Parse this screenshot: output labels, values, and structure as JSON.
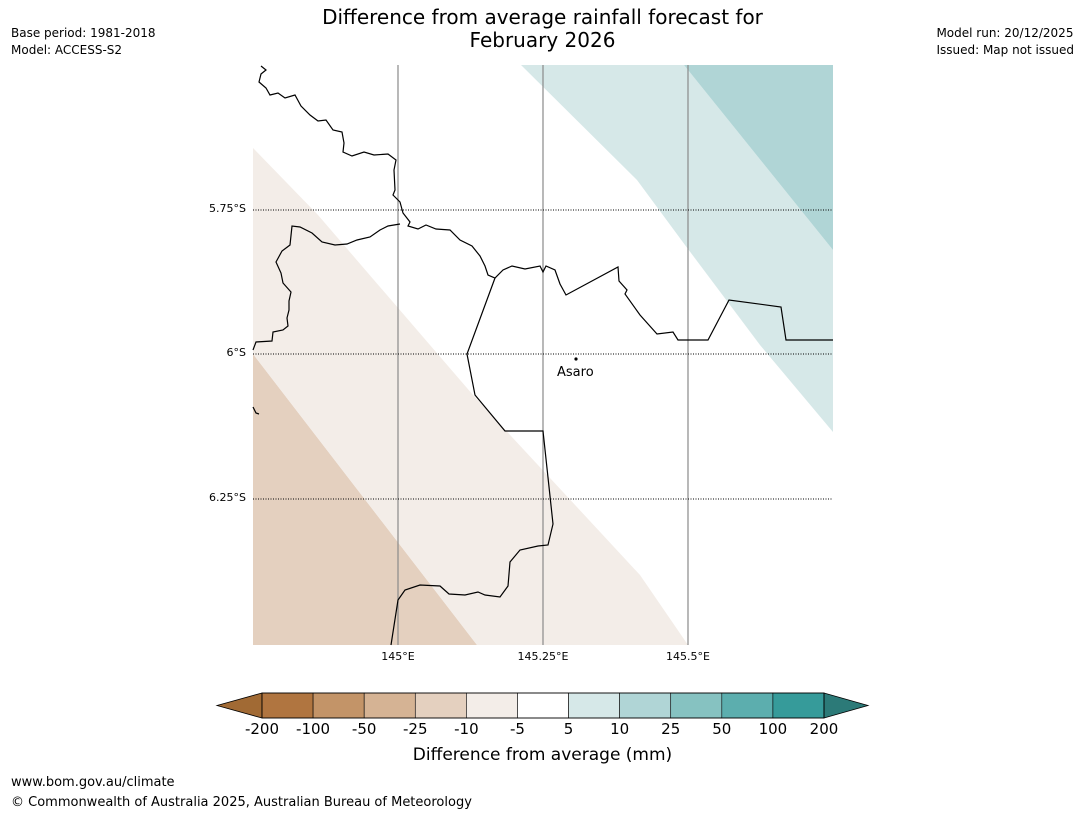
{
  "title_line1": "Difference from average rainfall forecast for",
  "title_line2": "February 2026",
  "meta_left": {
    "base_period": "Base period: 1981-2018",
    "model": "Model: ACCESS-S2"
  },
  "meta_right": {
    "model_run": "Model run: 20/12/2025",
    "issued": "Issued: Map not issued"
  },
  "map": {
    "lat_labels": [
      "5.75°S",
      "6°S",
      "6.25°S"
    ],
    "lon_labels": [
      "145°E",
      "145.25°E",
      "145.5°E"
    ],
    "place": "Asaro"
  },
  "colorbar": {
    "ticks": [
      "-200",
      "-100",
      "-50",
      "-25",
      "-10",
      "-5",
      "5",
      "10",
      "25",
      "50",
      "100",
      "200"
    ],
    "colors": [
      "#a16a34",
      "#b07540",
      "#c39468",
      "#d5b394",
      "#e4d0bf",
      "#f3ede8",
      "#ffffff",
      "#d6e8e8",
      "#b0d5d6",
      "#86c2c1",
      "#5caeae",
      "#369b9a",
      "#2c7a78"
    ],
    "label": "Difference from average (mm)"
  },
  "footer": {
    "url": "www.bom.gov.au/climate",
    "copyright": "© Commonwealth of Australia 2025, Australian Bureau of Meteorology"
  }
}
